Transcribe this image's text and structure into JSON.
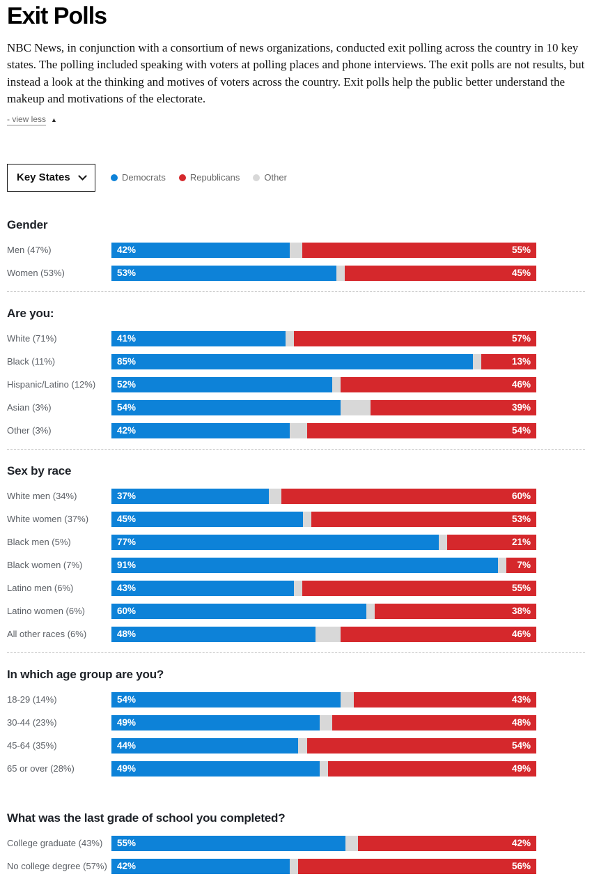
{
  "page": {
    "title": "Exit Polls",
    "description": "NBC News, in conjunction with a consortium of news organizations, conducted exit polling across the country in 10 key states. The polling included speaking with voters at polling places and phone interviews. The exit polls are not results, but instead a look at the thinking and motives of voters across the country. Exit polls help the public better understand the makeup and motivations of the electorate.",
    "view_less_label": "- view less"
  },
  "controls": {
    "dropdown_value": "Key States",
    "legend": [
      {
        "label": "Democrats",
        "color": "#0d82d8"
      },
      {
        "label": "Republicans",
        "color": "#d5282c"
      },
      {
        "label": "Other",
        "color": "#d8d8d8"
      }
    ]
  },
  "chart_data": {
    "type": "bar",
    "variant": "horizontal-stacked-100pct",
    "series_names": [
      "Democrats",
      "Republicans",
      "Other"
    ],
    "colors": {
      "democrats": "#0d82d8",
      "republicans": "#d5282c",
      "other": "#d8d8d8"
    },
    "xlim": [
      0,
      100
    ],
    "value_suffix": "%",
    "separator_after_sections": [
      0,
      1,
      2
    ],
    "sections": [
      {
        "title": "Gender",
        "rows": [
          {
            "label": "Men (47%)",
            "dem": 42,
            "rep": 55
          },
          {
            "label": "Women (53%)",
            "dem": 53,
            "rep": 45
          }
        ]
      },
      {
        "title": "Are you:",
        "rows": [
          {
            "label": "White (71%)",
            "dem": 41,
            "rep": 57
          },
          {
            "label": "Black (11%)",
            "dem": 85,
            "rep": 13
          },
          {
            "label": "Hispanic/Latino (12%)",
            "dem": 52,
            "rep": 46
          },
          {
            "label": "Asian (3%)",
            "dem": 54,
            "rep": 39
          },
          {
            "label": "Other (3%)",
            "dem": 42,
            "rep": 54
          }
        ]
      },
      {
        "title": "Sex by race",
        "rows": [
          {
            "label": "White men (34%)",
            "dem": 37,
            "rep": 60
          },
          {
            "label": "White women (37%)",
            "dem": 45,
            "rep": 53
          },
          {
            "label": "Black men (5%)",
            "dem": 77,
            "rep": 21
          },
          {
            "label": "Black women (7%)",
            "dem": 91,
            "rep": 7
          },
          {
            "label": "Latino men (6%)",
            "dem": 43,
            "rep": 55
          },
          {
            "label": "Latino women (6%)",
            "dem": 60,
            "rep": 38
          },
          {
            "label": "All other races (6%)",
            "dem": 48,
            "rep": 46
          }
        ]
      },
      {
        "title": "In which age group are you?",
        "rows": [
          {
            "label": "18-29 (14%)",
            "dem": 54,
            "rep": 43
          },
          {
            "label": "30-44 (23%)",
            "dem": 49,
            "rep": 48
          },
          {
            "label": "45-64 (35%)",
            "dem": 44,
            "rep": 54
          },
          {
            "label": "65 or over (28%)",
            "dem": 49,
            "rep": 49
          }
        ]
      },
      {
        "title": "What was the last grade of school you completed?",
        "rows": [
          {
            "label": "College graduate (43%)",
            "dem": 55,
            "rep": 42
          },
          {
            "label": "No college degree (57%)",
            "dem": 42,
            "rep": 56
          }
        ]
      }
    ]
  }
}
